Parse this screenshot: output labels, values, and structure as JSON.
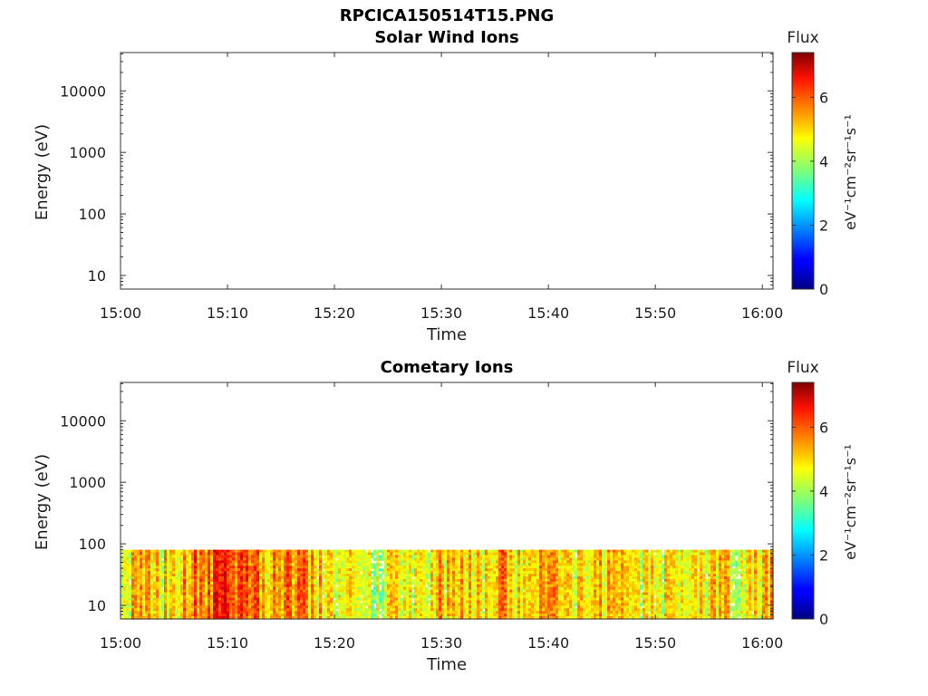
{
  "figure": {
    "title": "RPCICA150514T15.PNG"
  },
  "chart_data": [
    {
      "type": "heatmap",
      "title": "Solar Wind Ions",
      "xlabel": "Time",
      "ylabel": "Energy (eV)",
      "x_ticks": [
        "15:00",
        "15:10",
        "15:20",
        "15:30",
        "15:40",
        "15:50",
        "16:00"
      ],
      "y_ticks": [
        "10",
        "100",
        "1000",
        "10000"
      ],
      "y_scale": "log",
      "xlim": [
        "15:00",
        "16:01"
      ],
      "ylim": [
        6,
        42000
      ],
      "colorbar": {
        "label": "Flux",
        "units": "eV⁻¹cm⁻²sr⁻¹s⁻¹",
        "ticks": [
          "0",
          "2",
          "4",
          "6"
        ],
        "range": [
          0,
          7.4
        ],
        "colormap": "jet"
      },
      "data": "empty (no flux recorded)"
    },
    {
      "type": "heatmap",
      "title": "Cometary Ions",
      "xlabel": "Time",
      "ylabel": "Energy (eV)",
      "x_ticks": [
        "15:00",
        "15:10",
        "15:20",
        "15:30",
        "15:40",
        "15:50",
        "16:00"
      ],
      "y_ticks": [
        "10",
        "100",
        "1000",
        "10000"
      ],
      "y_scale": "log",
      "xlim": [
        "15:00",
        "16:01"
      ],
      "ylim": [
        6,
        42000
      ],
      "colorbar": {
        "label": "Flux",
        "units": "eV⁻¹cm⁻²sr⁻¹s⁻¹",
        "ticks": [
          "0",
          "2",
          "4",
          "6"
        ],
        "range": [
          0,
          7.4
        ],
        "colormap": "jet"
      },
      "energy_range_filled": [
        6,
        80
      ],
      "flux_profile": {
        "x": [
          "15:00",
          "15:02",
          "15:04",
          "15:06",
          "15:08",
          "15:10",
          "15:12",
          "15:14",
          "15:16",
          "15:18",
          "15:20",
          "15:22",
          "15:24",
          "15:26",
          "15:28",
          "15:30",
          "15:32",
          "15:34",
          "15:36",
          "15:38",
          "15:40",
          "15:42",
          "15:44",
          "15:46",
          "15:48",
          "15:50",
          "15:52",
          "15:54",
          "15:56",
          "15:58",
          "16:00"
        ],
        "mean_flux": [
          4.8,
          4.9,
          4.8,
          5.3,
          5.7,
          6.3,
          5.6,
          5.2,
          5.6,
          5.1,
          4.3,
          4.6,
          4.0,
          4.8,
          4.4,
          5.1,
          4.8,
          5.0,
          5.4,
          4.7,
          5.3,
          4.6,
          4.9,
          5.1,
          4.4,
          4.9,
          4.5,
          4.8,
          5.0,
          4.2,
          5.3
        ]
      }
    }
  ]
}
